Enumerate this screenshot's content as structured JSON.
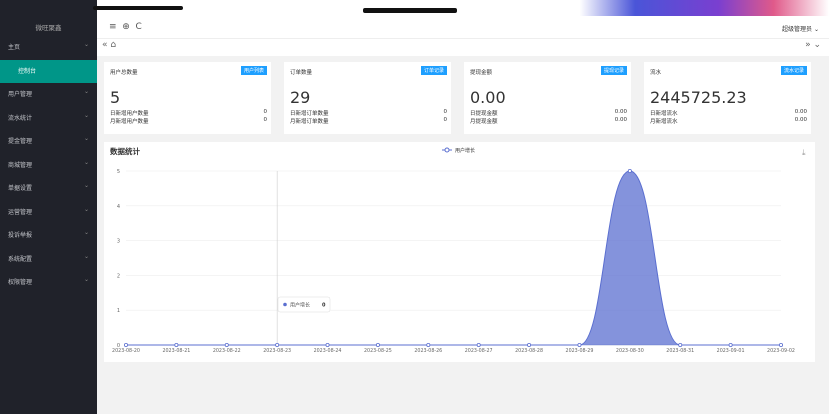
{
  "sidebar": {
    "brand": "微旺聚鑫",
    "items": [
      {
        "label": "主页"
      },
      {
        "label": "控制台"
      },
      {
        "label": "用户管理"
      },
      {
        "label": "流水统计"
      },
      {
        "label": "提金管理"
      },
      {
        "label": "商城管理"
      },
      {
        "label": "单据设置"
      },
      {
        "label": "运营管理"
      },
      {
        "label": "投诉举报"
      },
      {
        "label": "系统配置"
      },
      {
        "label": "权限管理"
      }
    ]
  },
  "header": {
    "user": "超级管理员"
  },
  "cards": [
    {
      "title": "用户总数量",
      "tag": "用户列表",
      "value": "5",
      "rows": [
        {
          "label": "日新增用户数量",
          "value": "0"
        },
        {
          "label": "月新增用户数量",
          "value": "0"
        }
      ]
    },
    {
      "title": "订单数量",
      "tag": "订单记录",
      "value": "29",
      "rows": [
        {
          "label": "日新增订单数量",
          "value": "0"
        },
        {
          "label": "月新增订单数量",
          "value": "0"
        }
      ]
    },
    {
      "title": "提现金额",
      "tag": "提现记录",
      "value": "0.00",
      "rows": [
        {
          "label": "日提现金额",
          "value": "0.00"
        },
        {
          "label": "月提现金额",
          "value": "0.00"
        }
      ]
    },
    {
      "title": "流水",
      "tag": "流水记录",
      "value": "2445725.23",
      "rows": [
        {
          "label": "日新增流水",
          "value": "0.00"
        },
        {
          "label": "月新增流水",
          "value": "0.00"
        }
      ]
    }
  ],
  "chart_data": {
    "type": "area",
    "title": "数据统计",
    "categories": [
      "2023-08-20",
      "2023-08-21",
      "2023-08-22",
      "2023-08-23",
      "2023-08-24",
      "2023-08-25",
      "2023-08-26",
      "2023-08-27",
      "2023-08-28",
      "2023-08-29",
      "2023-08-30",
      "2023-08-31",
      "2023-09-01",
      "2023-09-02"
    ],
    "series": [
      {
        "name": "用户增长",
        "color": "#5b6fd0",
        "values": [
          0,
          0,
          0,
          0,
          0,
          0,
          0,
          0,
          0,
          0,
          5,
          0,
          0,
          0
        ]
      }
    ],
    "ylim": [
      0,
      5
    ],
    "yticks": [
      0,
      1,
      2,
      3,
      4,
      5
    ],
    "grid": true,
    "smooth": true
  }
}
